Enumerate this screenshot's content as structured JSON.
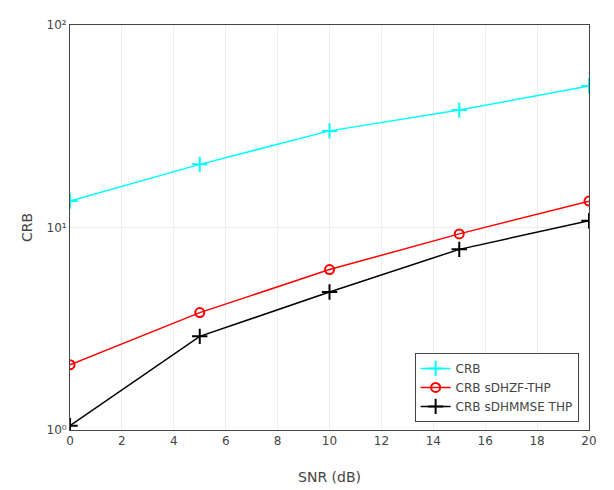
{
  "chart_data": {
    "type": "line",
    "x": [
      0,
      5,
      10,
      15,
      20
    ],
    "series": [
      {
        "name": "CRB",
        "color": "#00FFFF",
        "marker": "plus",
        "values": [
          13.5,
          20.5,
          30.0,
          38.0,
          50.0
        ]
      },
      {
        "name": "CRB sDHZF-THP",
        "color": "#FF0000",
        "marker": "circle-open",
        "values": [
          2.1,
          3.8,
          6.2,
          9.3,
          13.5
        ]
      },
      {
        "name": "CRB sDHMMSE THP",
        "color": "#000000",
        "marker": "plus",
        "values": [
          1.05,
          2.9,
          4.8,
          7.8,
          10.8
        ]
      }
    ],
    "x_label": "SNR (dB)",
    "y_label": "CRB",
    "xlim": [
      0,
      20
    ],
    "xticks": [
      0,
      2,
      4,
      6,
      8,
      10,
      12,
      14,
      16,
      18,
      20
    ],
    "ylim": [
      1.0,
      100
    ],
    "yticks": [
      {
        "value": 1,
        "label": "10⁰"
      },
      {
        "value": 10,
        "label": "10¹"
      },
      {
        "value": 100,
        "label": "10²"
      }
    ],
    "log": "y",
    "grid": true,
    "legend": "lower right"
  }
}
